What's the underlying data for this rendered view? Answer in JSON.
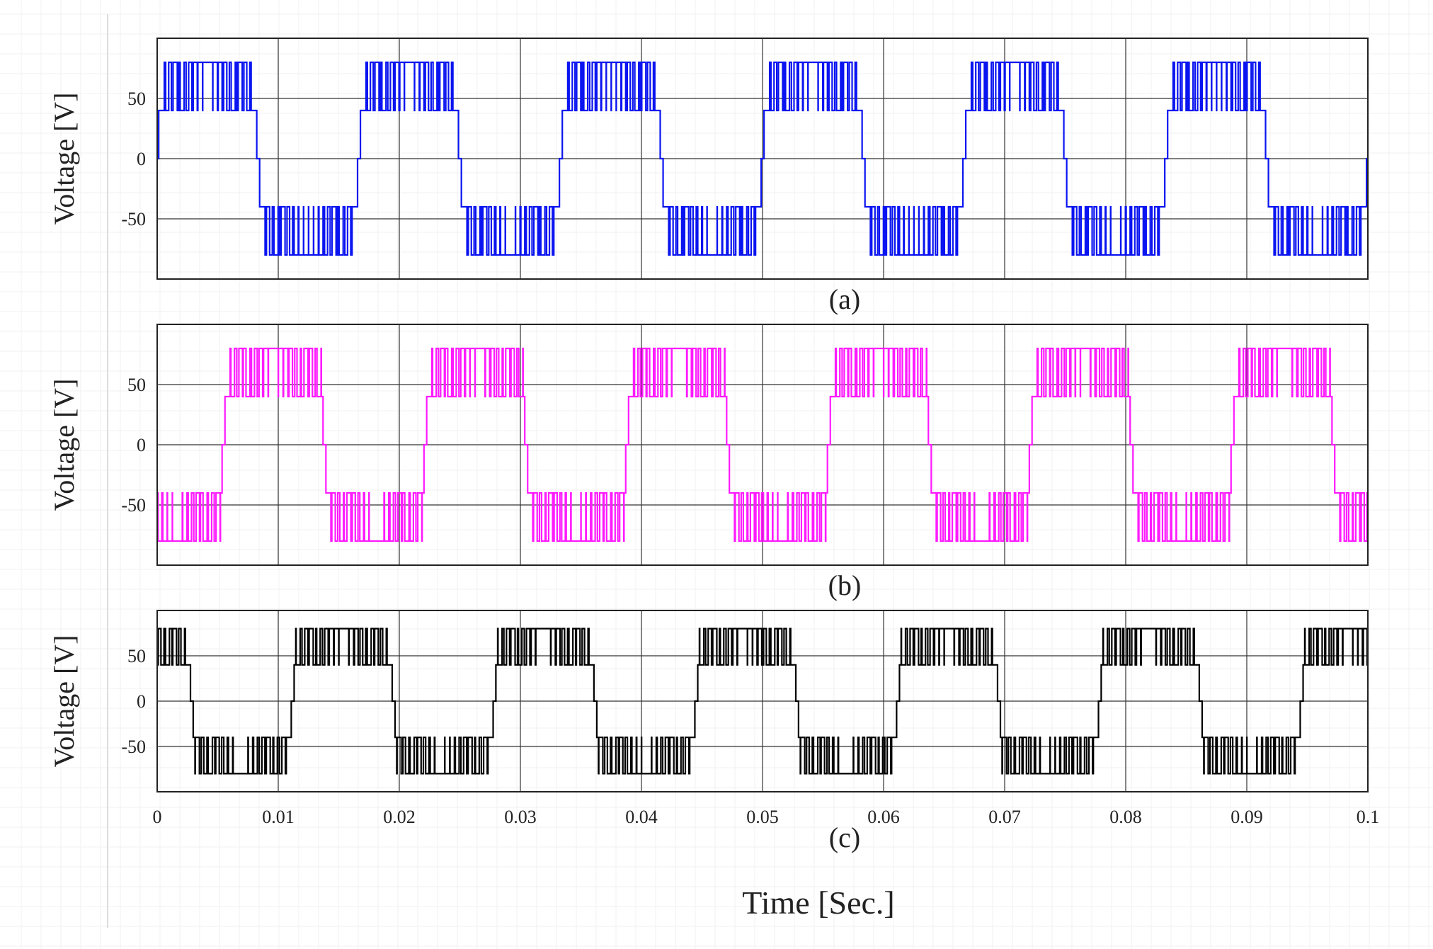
{
  "chart_data": [
    {
      "type": "line",
      "caption": "(a)",
      "ylabel": "Voltage [V]",
      "xlim": [
        0,
        0.1
      ],
      "ylim": [
        -100,
        100
      ],
      "yticks": [
        -50,
        0,
        50
      ],
      "ytick_labels": [
        "-50",
        "0",
        "50"
      ],
      "color": "#0a14f0",
      "grid": true,
      "waveform": {
        "kind": "five-level stepped PWM",
        "fundamental_hz": 60,
        "phase_deg": 0,
        "levels": [
          -80,
          -40,
          0,
          40,
          80
        ],
        "peak": 80
      }
    },
    {
      "type": "line",
      "caption": "(b)",
      "ylabel": "Voltage [V]",
      "xlim": [
        0,
        0.1
      ],
      "ylim": [
        -100,
        100
      ],
      "yticks": [
        -50,
        0,
        50
      ],
      "ytick_labels": [
        "-50",
        "0",
        "50"
      ],
      "color": "#ff1aff",
      "grid": true,
      "waveform": {
        "kind": "five-level stepped PWM",
        "fundamental_hz": 60,
        "phase_deg": -120,
        "levels": [
          -80,
          -40,
          0,
          40,
          80
        ],
        "peak": 80
      }
    },
    {
      "type": "line",
      "caption": "(c)",
      "ylabel": "Voltage [V]",
      "xlim": [
        0,
        0.1
      ],
      "ylim": [
        -100,
        100
      ],
      "yticks": [
        -50,
        0,
        50
      ],
      "ytick_labels": [
        "-50",
        "0",
        "50"
      ],
      "color": "#000000",
      "grid": true,
      "xticks": [
        0,
        0.01,
        0.02,
        0.03,
        0.04,
        0.05,
        0.06,
        0.07,
        0.08,
        0.09,
        0.1
      ],
      "xtick_labels": [
        "0",
        "0.01",
        "0.02",
        "0.03",
        "0.04",
        "0.05",
        "0.06",
        "0.07",
        "0.08",
        "0.09",
        "0.1"
      ],
      "waveform": {
        "kind": "five-level stepped PWM",
        "fundamental_hz": 60,
        "phase_deg": 120,
        "levels": [
          -80,
          -40,
          0,
          40,
          80
        ],
        "peak": 80
      }
    }
  ],
  "xlabel": "Time [Sec.]"
}
